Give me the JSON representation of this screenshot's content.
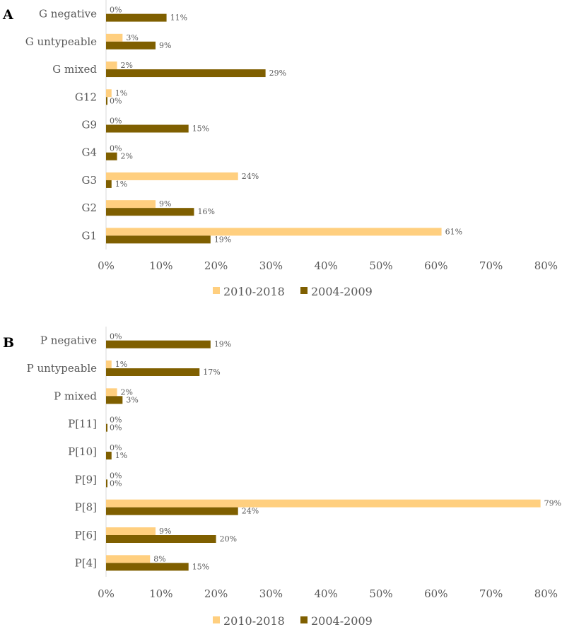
{
  "colors": {
    "recent": "#FFCF7F",
    "older": "#7F5F00",
    "axis": "#D9D9D9",
    "text": "#595959"
  },
  "chart_data": [
    {
      "panel": "A",
      "type": "bar",
      "orientation": "horizontal",
      "categories": [
        "G negative",
        "G untypeable",
        "G mixed",
        "G12",
        "G9",
        "G4",
        "G3",
        "G2",
        "G1"
      ],
      "series": [
        {
          "name": "2010-2018",
          "values": [
            0,
            3,
            2,
            1,
            0,
            0,
            24,
            9,
            61
          ],
          "labels": [
            "0%",
            "3%",
            "2%",
            "1%",
            "0%",
            "0%",
            "24%",
            "9%",
            "61%"
          ]
        },
        {
          "name": "2004-2009",
          "values": [
            11,
            9,
            29,
            0,
            15,
            2,
            1,
            16,
            19
          ],
          "labels": [
            "11%",
            "9%",
            "29%",
            "0%",
            "15%",
            "2%",
            "1%",
            "16%",
            "19%"
          ]
        }
      ],
      "xlim": [
        0,
        80
      ],
      "xticks": [
        "0%",
        "10%",
        "20%",
        "30%",
        "40%",
        "50%",
        "60%",
        "70%",
        "80%"
      ],
      "legend": "bottom",
      "grid": false
    },
    {
      "panel": "B",
      "type": "bar",
      "orientation": "horizontal",
      "categories": [
        "P negative",
        "P untypeable",
        "P mixed",
        "P[11]",
        "P[10]",
        "P[9]",
        "P[8]",
        "P[6]",
        "P[4]"
      ],
      "series": [
        {
          "name": "2010-2018",
          "values": [
            0,
            1,
            2,
            0,
            0,
            0,
            79,
            9,
            8
          ],
          "labels": [
            "0%",
            "1%",
            "2%",
            "0%",
            "0%",
            "0%",
            "79%",
            "9%",
            "8%"
          ]
        },
        {
          "name": "2004-2009",
          "values": [
            19,
            17,
            3,
            0,
            1,
            0,
            24,
            20,
            15
          ],
          "labels": [
            "19%",
            "17%",
            "3%",
            "0%",
            "1%",
            "0%",
            "24%",
            "20%",
            "15%"
          ]
        }
      ],
      "xlim": [
        0,
        80
      ],
      "xticks": [
        "0%",
        "10%",
        "20%",
        "30%",
        "40%",
        "50%",
        "60%",
        "70%",
        "80%"
      ],
      "legend": "bottom",
      "grid": false
    }
  ]
}
